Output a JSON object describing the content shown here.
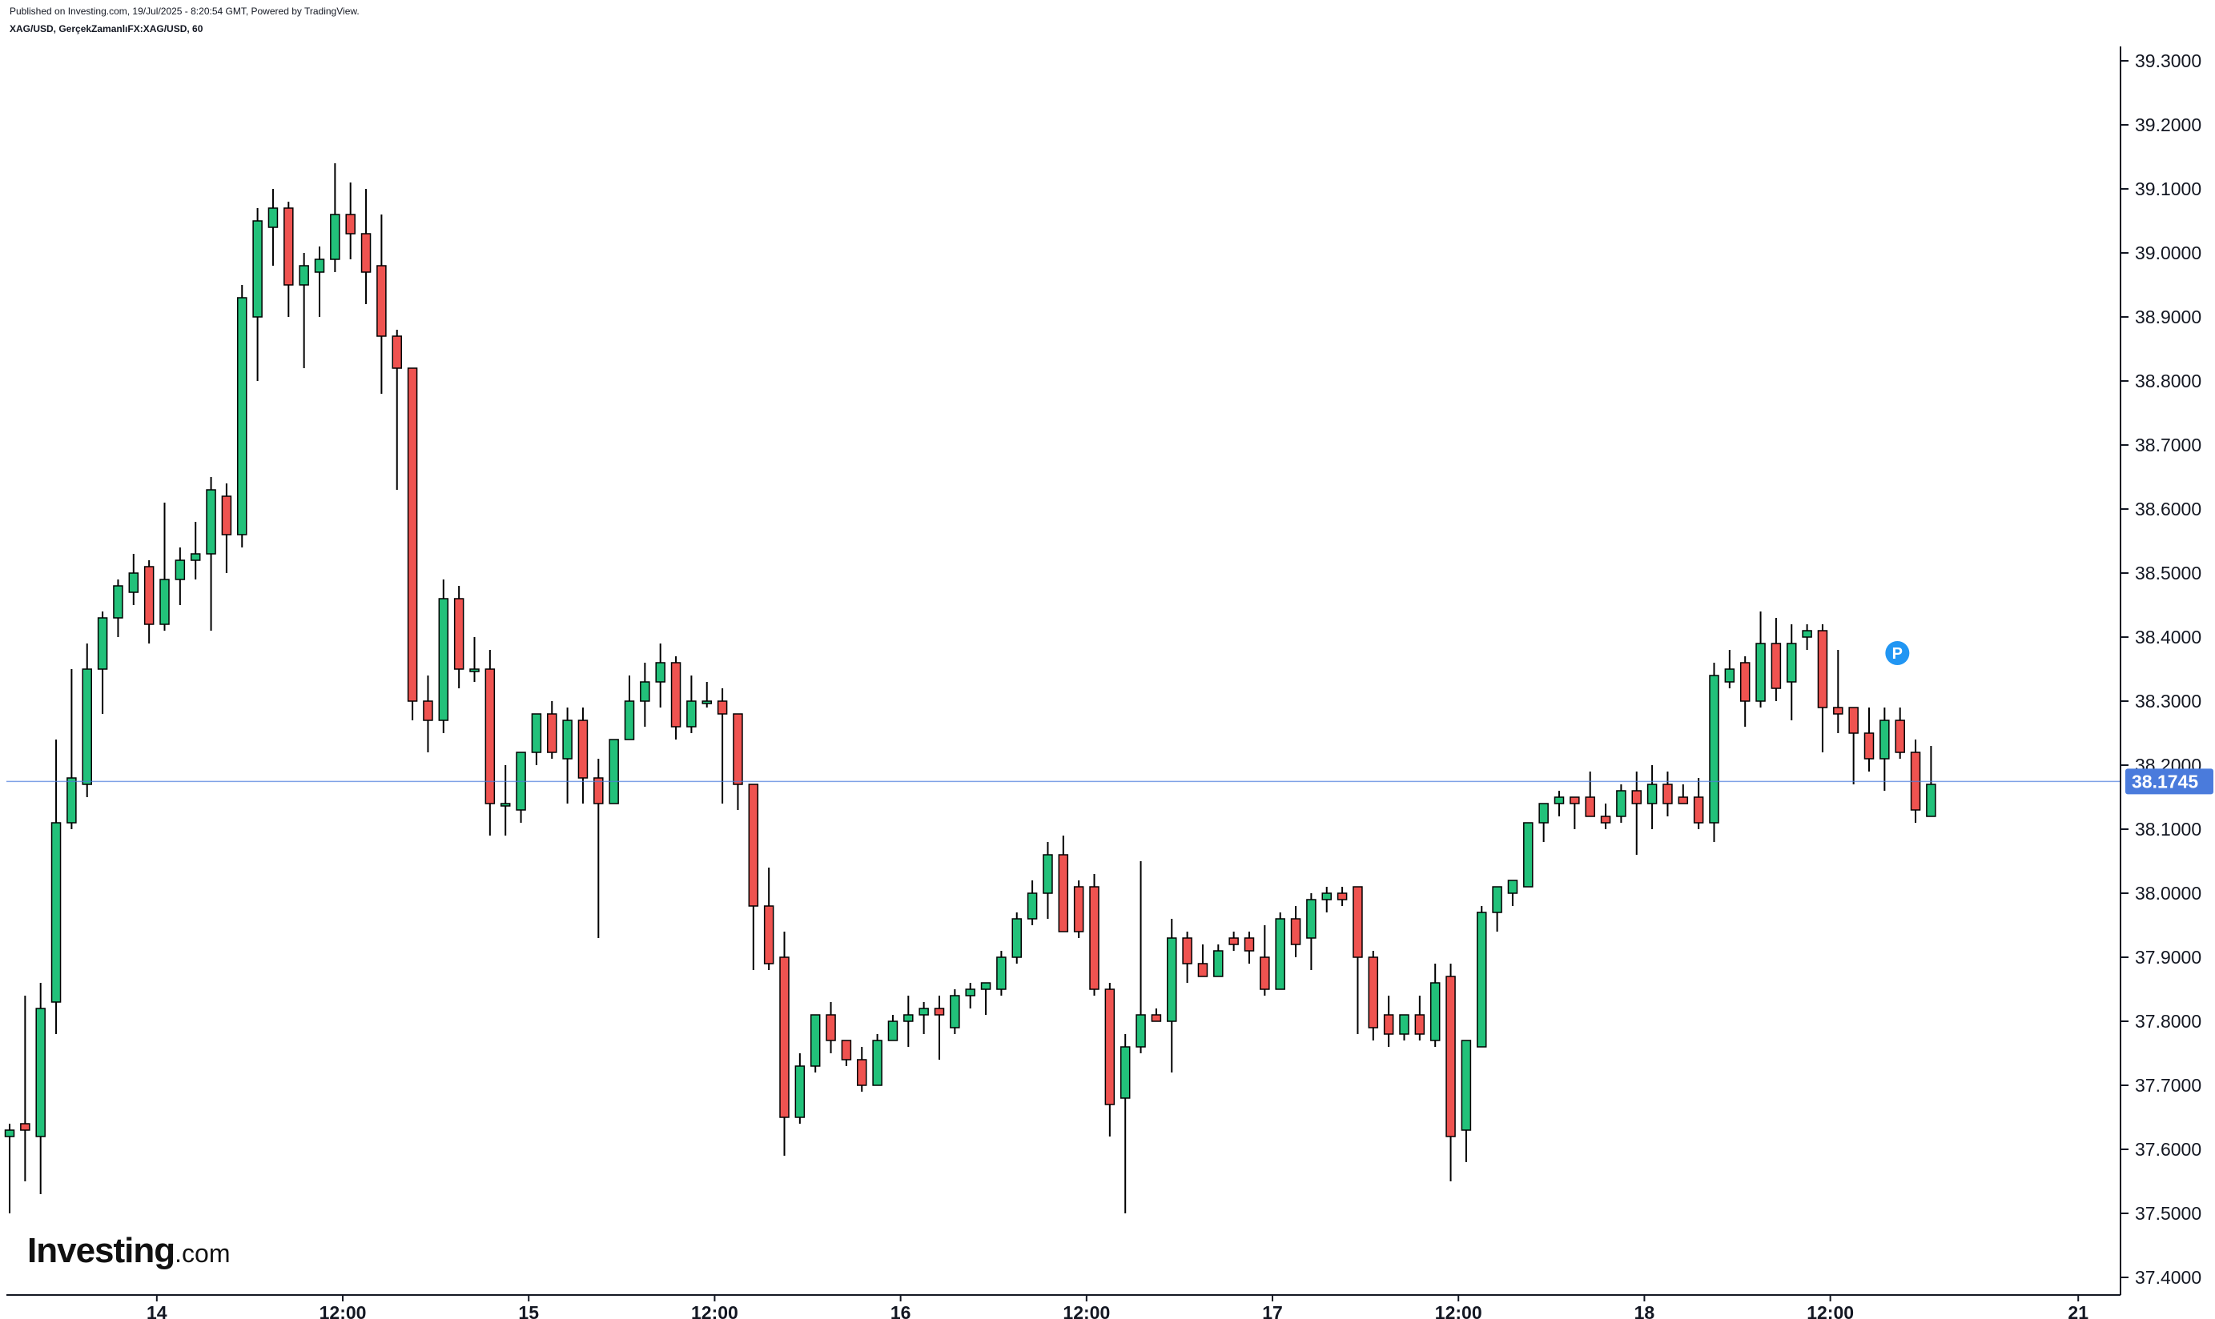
{
  "header": {
    "published": "Published on Investing.com, 19/Jul/2025 - 8:20:54 GMT, Powered by TradingView.",
    "symbol_line": "XAG/USD, GerçekZamanlıFX:XAG/USD, 60"
  },
  "logo": {
    "main": "Investing",
    "suffix": ".com"
  },
  "colors": {
    "up": "#22c17a",
    "down": "#ef5350",
    "wick": "#000000",
    "price_line": "#4a7bdc",
    "marker": "#2196f3"
  },
  "chart_data": {
    "type": "candlestick",
    "interval": "60",
    "symbol": "XAG/USD",
    "ylim": [
      37.38,
      39.33
    ],
    "yticks": [
      "39.3000",
      "39.2000",
      "39.1000",
      "39.0000",
      "38.9000",
      "38.8000",
      "38.7000",
      "38.6000",
      "38.5000",
      "38.4000",
      "38.3000",
      "38.2000",
      "38.1000",
      "38.0000",
      "37.9000",
      "37.8000",
      "37.7000",
      "37.6000",
      "37.5000",
      "37.4000"
    ],
    "xticks": [
      {
        "label": "14",
        "index": 9.5
      },
      {
        "label": "12:00",
        "index": 21.5
      },
      {
        "label": "15",
        "index": 33.5
      },
      {
        "label": "12:00",
        "index": 45.5
      },
      {
        "label": "16",
        "index": 57.5
      },
      {
        "label": "12:00",
        "index": 69.5
      },
      {
        "label": "17",
        "index": 81.5
      },
      {
        "label": "12:00",
        "index": 93.5
      },
      {
        "label": "18",
        "index": 105.5
      },
      {
        "label": "12:00",
        "index": 117.5
      },
      {
        "label": "21",
        "index": 133.5
      }
    ],
    "last_price": 38.1745,
    "last_price_label": "38.1745",
    "marker": {
      "label": "P",
      "index": 121,
      "price": 38.42
    },
    "candles": [
      {
        "o": 37.62,
        "h": 37.64,
        "l": 37.5,
        "c": 37.63
      },
      {
        "o": 37.64,
        "h": 37.84,
        "l": 37.55,
        "c": 37.63
      },
      {
        "o": 37.62,
        "h": 37.86,
        "l": 37.53,
        "c": 37.82
      },
      {
        "o": 37.83,
        "h": 38.24,
        "l": 37.78,
        "c": 38.11
      },
      {
        "o": 38.11,
        "h": 38.35,
        "l": 38.1,
        "c": 38.18
      },
      {
        "o": 38.17,
        "h": 38.39,
        "l": 38.15,
        "c": 38.35
      },
      {
        "o": 38.35,
        "h": 38.44,
        "l": 38.28,
        "c": 38.43
      },
      {
        "o": 38.43,
        "h": 38.49,
        "l": 38.4,
        "c": 38.48
      },
      {
        "o": 38.47,
        "h": 38.53,
        "l": 38.45,
        "c": 38.5
      },
      {
        "o": 38.51,
        "h": 38.52,
        "l": 38.39,
        "c": 38.42
      },
      {
        "o": 38.42,
        "h": 38.61,
        "l": 38.41,
        "c": 38.49
      },
      {
        "o": 38.49,
        "h": 38.54,
        "l": 38.45,
        "c": 38.52
      },
      {
        "o": 38.52,
        "h": 38.58,
        "l": 38.49,
        "c": 38.53
      },
      {
        "o": 38.53,
        "h": 38.65,
        "l": 38.41,
        "c": 38.63
      },
      {
        "o": 38.62,
        "h": 38.64,
        "l": 38.5,
        "c": 38.56
      },
      {
        "o": 38.56,
        "h": 38.95,
        "l": 38.54,
        "c": 38.93
      },
      {
        "o": 38.9,
        "h": 39.07,
        "l": 38.8,
        "c": 39.05
      },
      {
        "o": 39.04,
        "h": 39.1,
        "l": 38.98,
        "c": 39.07
      },
      {
        "o": 39.07,
        "h": 39.08,
        "l": 38.9,
        "c": 38.95
      },
      {
        "o": 38.95,
        "h": 39.0,
        "l": 38.82,
        "c": 38.98
      },
      {
        "o": 38.97,
        "h": 39.01,
        "l": 38.9,
        "c": 38.99
      },
      {
        "o": 38.99,
        "h": 39.14,
        "l": 38.97,
        "c": 39.06
      },
      {
        "o": 39.06,
        "h": 39.11,
        "l": 38.99,
        "c": 39.03
      },
      {
        "o": 39.03,
        "h": 39.1,
        "l": 38.92,
        "c": 38.97
      },
      {
        "o": 38.98,
        "h": 39.06,
        "l": 38.78,
        "c": 38.87
      },
      {
        "o": 38.87,
        "h": 38.88,
        "l": 38.63,
        "c": 38.82
      },
      {
        "o": 38.82,
        "h": 38.82,
        "l": 38.27,
        "c": 38.3
      },
      {
        "o": 38.3,
        "h": 38.34,
        "l": 38.22,
        "c": 38.27
      },
      {
        "o": 38.27,
        "h": 38.49,
        "l": 38.25,
        "c": 38.46
      },
      {
        "o": 38.46,
        "h": 38.48,
        "l": 38.32,
        "c": 38.35
      },
      {
        "o": 38.35,
        "h": 38.4,
        "l": 38.33,
        "c": 38.35
      },
      {
        "o": 38.35,
        "h": 38.38,
        "l": 38.09,
        "c": 38.14
      },
      {
        "o": 38.14,
        "h": 38.2,
        "l": 38.09,
        "c": 38.14
      },
      {
        "o": 38.13,
        "h": 38.22,
        "l": 38.11,
        "c": 38.22
      },
      {
        "o": 38.22,
        "h": 38.28,
        "l": 38.2,
        "c": 38.28
      },
      {
        "o": 38.28,
        "h": 38.3,
        "l": 38.21,
        "c": 38.22
      },
      {
        "o": 38.21,
        "h": 38.29,
        "l": 38.14,
        "c": 38.27
      },
      {
        "o": 38.27,
        "h": 38.29,
        "l": 38.14,
        "c": 38.18
      },
      {
        "o": 38.18,
        "h": 38.21,
        "l": 37.93,
        "c": 38.14
      },
      {
        "o": 38.14,
        "h": 38.24,
        "l": 38.14,
        "c": 38.24
      },
      {
        "o": 38.24,
        "h": 38.34,
        "l": 38.24,
        "c": 38.3
      },
      {
        "o": 38.3,
        "h": 38.36,
        "l": 38.26,
        "c": 38.33
      },
      {
        "o": 38.33,
        "h": 38.39,
        "l": 38.29,
        "c": 38.36
      },
      {
        "o": 38.36,
        "h": 38.37,
        "l": 38.24,
        "c": 38.26
      },
      {
        "o": 38.26,
        "h": 38.34,
        "l": 38.25,
        "c": 38.3
      },
      {
        "o": 38.3,
        "h": 38.33,
        "l": 38.29,
        "c": 38.3
      },
      {
        "o": 38.3,
        "h": 38.32,
        "l": 38.14,
        "c": 38.28
      },
      {
        "o": 38.28,
        "h": 38.28,
        "l": 38.13,
        "c": 38.17
      },
      {
        "o": 38.17,
        "h": 38.17,
        "l": 37.88,
        "c": 37.98
      },
      {
        "o": 37.98,
        "h": 38.04,
        "l": 37.88,
        "c": 37.89
      },
      {
        "o": 37.9,
        "h": 37.94,
        "l": 37.59,
        "c": 37.65
      },
      {
        "o": 37.65,
        "h": 37.75,
        "l": 37.64,
        "c": 37.73
      },
      {
        "o": 37.73,
        "h": 37.81,
        "l": 37.72,
        "c": 37.81
      },
      {
        "o": 37.81,
        "h": 37.83,
        "l": 37.75,
        "c": 37.77
      },
      {
        "o": 37.77,
        "h": 37.77,
        "l": 37.73,
        "c": 37.74
      },
      {
        "o": 37.74,
        "h": 37.76,
        "l": 37.69,
        "c": 37.7
      },
      {
        "o": 37.7,
        "h": 37.78,
        "l": 37.7,
        "c": 37.77
      },
      {
        "o": 37.77,
        "h": 37.81,
        "l": 37.77,
        "c": 37.8
      },
      {
        "o": 37.8,
        "h": 37.84,
        "l": 37.76,
        "c": 37.81
      },
      {
        "o": 37.81,
        "h": 37.83,
        "l": 37.78,
        "c": 37.82
      },
      {
        "o": 37.82,
        "h": 37.84,
        "l": 37.74,
        "c": 37.81
      },
      {
        "o": 37.79,
        "h": 37.85,
        "l": 37.78,
        "c": 37.84
      },
      {
        "o": 37.84,
        "h": 37.86,
        "l": 37.82,
        "c": 37.85
      },
      {
        "o": 37.85,
        "h": 37.86,
        "l": 37.81,
        "c": 37.86
      },
      {
        "o": 37.85,
        "h": 37.91,
        "l": 37.84,
        "c": 37.9
      },
      {
        "o": 37.9,
        "h": 37.97,
        "l": 37.89,
        "c": 37.96
      },
      {
        "o": 37.96,
        "h": 38.02,
        "l": 37.95,
        "c": 38.0
      },
      {
        "o": 38.0,
        "h": 38.08,
        "l": 37.96,
        "c": 38.06
      },
      {
        "o": 38.06,
        "h": 38.09,
        "l": 37.94,
        "c": 37.94
      },
      {
        "o": 38.01,
        "h": 38.02,
        "l": 37.93,
        "c": 37.94
      },
      {
        "o": 38.01,
        "h": 38.03,
        "l": 37.84,
        "c": 37.85
      },
      {
        "o": 37.85,
        "h": 37.86,
        "l": 37.62,
        "c": 37.67
      },
      {
        "o": 37.68,
        "h": 37.78,
        "l": 37.5,
        "c": 37.76
      },
      {
        "o": 37.76,
        "h": 38.05,
        "l": 37.75,
        "c": 37.81
      },
      {
        "o": 37.81,
        "h": 37.82,
        "l": 37.8,
        "c": 37.8
      },
      {
        "o": 37.8,
        "h": 37.96,
        "l": 37.72,
        "c": 37.93
      },
      {
        "o": 37.93,
        "h": 37.94,
        "l": 37.86,
        "c": 37.89
      },
      {
        "o": 37.89,
        "h": 37.92,
        "l": 37.88,
        "c": 37.87
      },
      {
        "o": 37.87,
        "h": 37.92,
        "l": 37.87,
        "c": 37.91
      },
      {
        "o": 37.93,
        "h": 37.94,
        "l": 37.91,
        "c": 37.92
      },
      {
        "o": 37.93,
        "h": 37.94,
        "l": 37.89,
        "c": 37.91
      },
      {
        "o": 37.9,
        "h": 37.95,
        "l": 37.84,
        "c": 37.85
      },
      {
        "o": 37.85,
        "h": 37.97,
        "l": 37.85,
        "c": 37.96
      },
      {
        "o": 37.96,
        "h": 37.98,
        "l": 37.9,
        "c": 37.92
      },
      {
        "o": 37.93,
        "h": 38.0,
        "l": 37.88,
        "c": 37.99
      },
      {
        "o": 37.99,
        "h": 38.01,
        "l": 37.97,
        "c": 38.0
      },
      {
        "o": 38.0,
        "h": 38.01,
        "l": 37.98,
        "c": 37.99
      },
      {
        "o": 38.01,
        "h": 38.01,
        "l": 37.78,
        "c": 37.9
      },
      {
        "o": 37.9,
        "h": 37.91,
        "l": 37.77,
        "c": 37.79
      },
      {
        "o": 37.81,
        "h": 37.84,
        "l": 37.76,
        "c": 37.78
      },
      {
        "o": 37.78,
        "h": 37.81,
        "l": 37.77,
        "c": 37.81
      },
      {
        "o": 37.81,
        "h": 37.84,
        "l": 37.77,
        "c": 37.78
      },
      {
        "o": 37.77,
        "h": 37.89,
        "l": 37.76,
        "c": 37.86
      },
      {
        "o": 37.87,
        "h": 37.89,
        "l": 37.55,
        "c": 37.62
      },
      {
        "o": 37.63,
        "h": 37.77,
        "l": 37.58,
        "c": 37.77
      },
      {
        "o": 37.76,
        "h": 37.98,
        "l": 37.76,
        "c": 37.97
      },
      {
        "o": 37.97,
        "h": 38.01,
        "l": 37.94,
        "c": 38.01
      },
      {
        "o": 38.0,
        "h": 38.02,
        "l": 37.98,
        "c": 38.02
      },
      {
        "o": 38.01,
        "h": 38.11,
        "l": 38.01,
        "c": 38.11
      },
      {
        "o": 38.11,
        "h": 38.14,
        "l": 38.08,
        "c": 38.14
      },
      {
        "o": 38.14,
        "h": 38.16,
        "l": 38.12,
        "c": 38.15
      },
      {
        "o": 38.15,
        "h": 38.15,
        "l": 38.1,
        "c": 38.14
      },
      {
        "o": 38.15,
        "h": 38.19,
        "l": 38.12,
        "c": 38.12
      },
      {
        "o": 38.12,
        "h": 38.14,
        "l": 38.1,
        "c": 38.11
      },
      {
        "o": 38.12,
        "h": 38.17,
        "l": 38.11,
        "c": 38.16
      },
      {
        "o": 38.16,
        "h": 38.19,
        "l": 38.06,
        "c": 38.14
      },
      {
        "o": 38.14,
        "h": 38.2,
        "l": 38.1,
        "c": 38.17
      },
      {
        "o": 38.17,
        "h": 38.19,
        "l": 38.12,
        "c": 38.14
      },
      {
        "o": 38.15,
        "h": 38.17,
        "l": 38.14,
        "c": 38.14
      },
      {
        "o": 38.15,
        "h": 38.18,
        "l": 38.1,
        "c": 38.11
      },
      {
        "o": 38.11,
        "h": 38.36,
        "l": 38.08,
        "c": 38.34
      },
      {
        "o": 38.33,
        "h": 38.38,
        "l": 38.32,
        "c": 38.35
      },
      {
        "o": 38.36,
        "h": 38.37,
        "l": 38.26,
        "c": 38.3
      },
      {
        "o": 38.3,
        "h": 38.44,
        "l": 38.29,
        "c": 38.39
      },
      {
        "o": 38.39,
        "h": 38.43,
        "l": 38.3,
        "c": 38.32
      },
      {
        "o": 38.33,
        "h": 38.42,
        "l": 38.27,
        "c": 38.39
      },
      {
        "o": 38.4,
        "h": 38.42,
        "l": 38.38,
        "c": 38.41
      },
      {
        "o": 38.41,
        "h": 38.42,
        "l": 38.22,
        "c": 38.29
      },
      {
        "o": 38.29,
        "h": 38.38,
        "l": 38.25,
        "c": 38.28
      },
      {
        "o": 38.29,
        "h": 38.29,
        "l": 38.17,
        "c": 38.25
      },
      {
        "o": 38.25,
        "h": 38.29,
        "l": 38.19,
        "c": 38.21
      },
      {
        "o": 38.21,
        "h": 38.29,
        "l": 38.16,
        "c": 38.27
      },
      {
        "o": 38.27,
        "h": 38.29,
        "l": 38.21,
        "c": 38.22
      },
      {
        "o": 38.22,
        "h": 38.24,
        "l": 38.11,
        "c": 38.13
      },
      {
        "o": 38.12,
        "h": 38.23,
        "l": 38.12,
        "c": 38.17
      }
    ]
  }
}
